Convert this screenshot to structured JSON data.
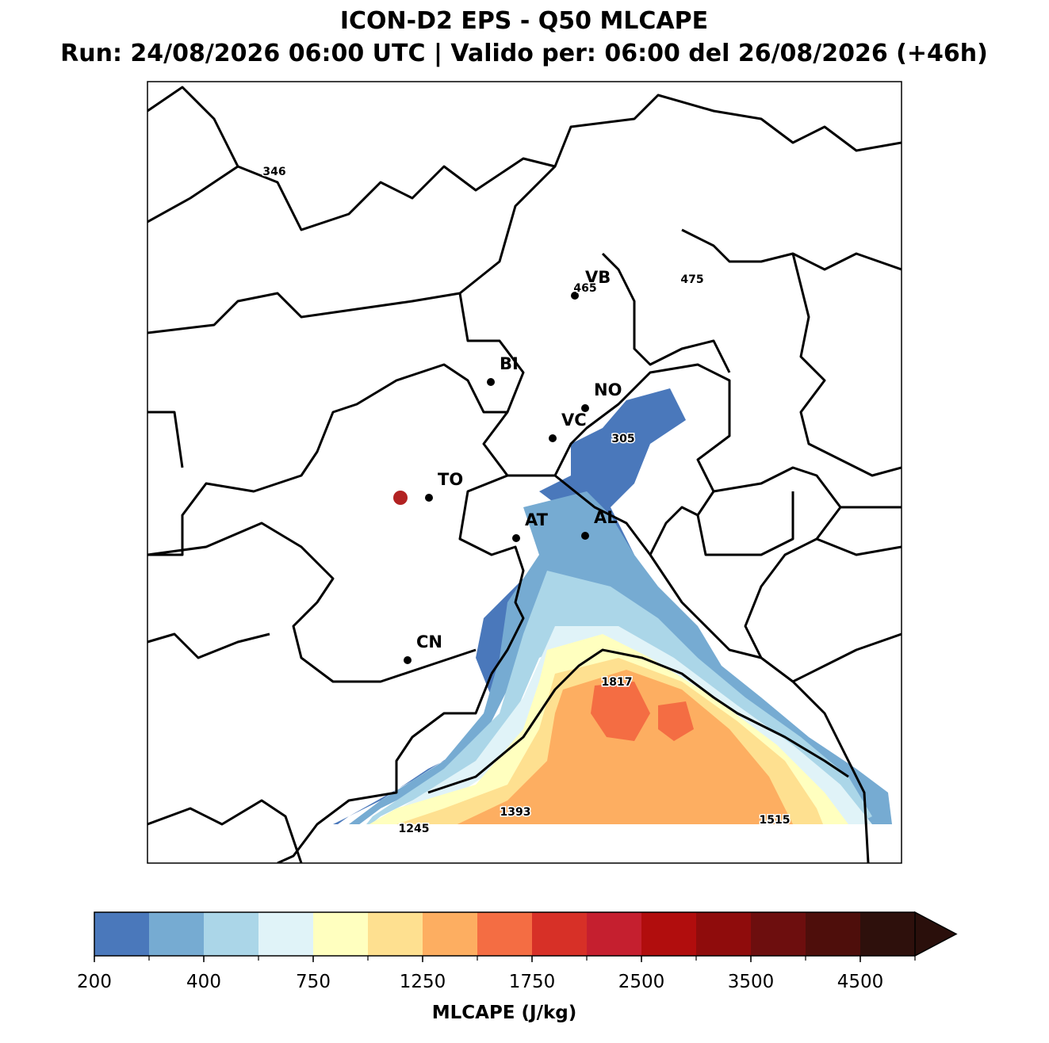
{
  "header": {
    "title": "ICON-D2 EPS - Q50 MLCAPE",
    "subtitle": "Run: 24/08/2026 06:00 UTC | Valido per: 06:00 del 26/08/2026 (+46h)"
  },
  "map": {
    "cities": [
      "VB",
      "BI",
      "NO",
      "VC",
      "TO",
      "AT",
      "AL",
      "CN"
    ],
    "contour_labels": [
      346,
      465,
      475,
      305,
      1817,
      1393,
      1245,
      1515
    ]
  },
  "colorbar": {
    "label": "MLCAPE (J/kg)",
    "levels": [
      200,
      300,
      400,
      500,
      750,
      1000,
      1250,
      1500,
      1750,
      2000,
      2500,
      3000,
      3500,
      4000,
      4500,
      5000
    ],
    "ticks": [
      200,
      400,
      750,
      1250,
      1750,
      2500,
      3500,
      4500
    ],
    "colors": [
      "#4a78bb",
      "#76abd2",
      "#abd6e8",
      "#e0f3f8",
      "#ffffbf",
      "#fee090",
      "#fdae61",
      "#f46d43",
      "#d73027",
      "#c51f2f",
      "#b10d0d",
      "#8f0c0c",
      "#6d0e0e",
      "#4e0e0b",
      "#2e100c"
    ],
    "extend_color": "#2a0f0b"
  }
}
